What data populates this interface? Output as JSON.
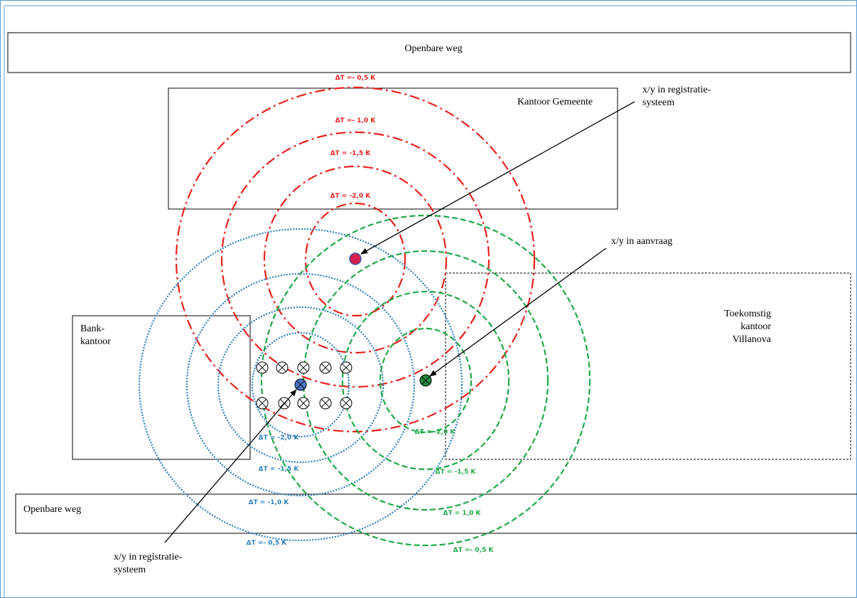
{
  "labels": {
    "road_top": "Openbare weg",
    "road_bottom": "Openbare weg",
    "municipal_office": "Kantoor  Gemeente",
    "bank_office_1": "Bank-",
    "bank_office_2": "kantoor",
    "future_office_1": "Toekomstig",
    "future_office_2": "kantoor",
    "future_office_3": "Villanova",
    "reg_top_1": "x/y in registratie-",
    "reg_top_2": "systeem",
    "request": "x/y in aanvraag",
    "reg_bottom_1": "x/y in registratie-",
    "reg_bottom_2": "systeem"
  },
  "red_rings": [
    "ΔT =- 0,5 K",
    "ΔT =- 1,0 K",
    "ΔT = -1,5 K",
    "ΔT = -2,0 K"
  ],
  "blue_rings": [
    "ΔT = -2,0 K",
    "ΔT = -1,5 K",
    "ΔT = -1,0 K",
    "ΔT =- 0,5 K"
  ],
  "green_rings": [
    "ΔT = -2,0 K",
    "ΔT = -1,5 K",
    "ΔT = 1,0 K",
    "ΔT =- 0,5 K"
  ],
  "colors": {
    "red": "#e8211c",
    "blue": "#2e7fc2",
    "green": "#21a84a",
    "frame": "#5b9bd5",
    "red_dot": "#e8211c",
    "red_dot_fill": "#d61f4f",
    "blue_dot": "#4a78c8",
    "green_dot": "#1f8a3e"
  }
}
